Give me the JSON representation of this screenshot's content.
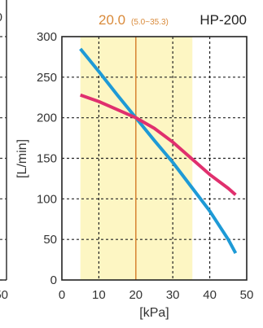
{
  "chart_data": {
    "type": "line",
    "model": "HP-200",
    "operating_point": {
      "label": "20.0",
      "range_label": "(5.0~35.3)",
      "x": 20.0,
      "range": [
        5.0,
        35.3
      ]
    },
    "xlabel": "[kPa]",
    "ylabel": "[L/min]",
    "xlim": [
      0,
      50
    ],
    "ylim": [
      0,
      300
    ],
    "x_ticks": [
      "0",
      "10",
      "20",
      "30",
      "40",
      "50"
    ],
    "y_ticks": [
      "0",
      "50",
      "100",
      "150",
      "200",
      "250",
      "300"
    ],
    "grid": true,
    "series": [
      {
        "color": "#1e9ad6",
        "x": [
          5,
          10,
          15,
          20,
          25,
          30,
          35,
          40,
          45,
          47
        ],
        "y": [
          285,
          257,
          228,
          200,
          172,
          145,
          115,
          85,
          50,
          33
        ]
      },
      {
        "color": "#e0306e",
        "x": [
          5,
          10,
          15,
          20,
          25,
          30,
          35,
          40,
          45,
          47
        ],
        "y": [
          228,
          220,
          210,
          200,
          187,
          170,
          150,
          130,
          113,
          105
        ]
      }
    ],
    "left_partial_labels": [
      "0",
      "50"
    ]
  }
}
